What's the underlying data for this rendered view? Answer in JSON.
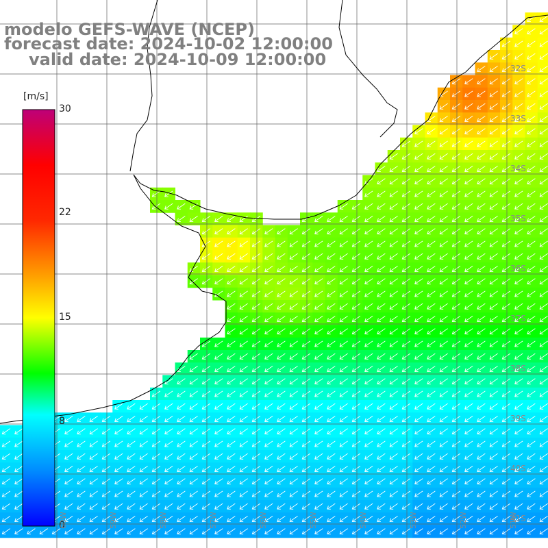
{
  "title": {
    "line1": "modelo GEFS-WAVE (NCEP)",
    "line2": "forecast date: 2024-10-02 12:00:00",
    "line3": "valid date: 2024-10-09 12:00:00"
  },
  "colorbar": {
    "unit": "[m/s]",
    "ticks": [
      "30",
      "22",
      "15",
      "8",
      "0"
    ],
    "range": [
      0,
      30
    ]
  },
  "colors": {
    "land": "#ffffff",
    "coastline": "#000000",
    "grid": "#606060",
    "arrows": "#ffffff",
    "title": "#808080"
  },
  "lat_labels": [
    "32S",
    "33S",
    "34S",
    "35S",
    "36S",
    "37S",
    "38S",
    "39S",
    "40S",
    "41S"
  ],
  "lon_labels": [
    "60W",
    "59W",
    "58W",
    "57W",
    "56W",
    "55W",
    "54W",
    "53W",
    "52W",
    "51W"
  ],
  "map": {
    "region": "Rio de la Plata / Southwestern Atlantic",
    "variable": "wind speed",
    "wind_direction_hint": "southwestward"
  }
}
